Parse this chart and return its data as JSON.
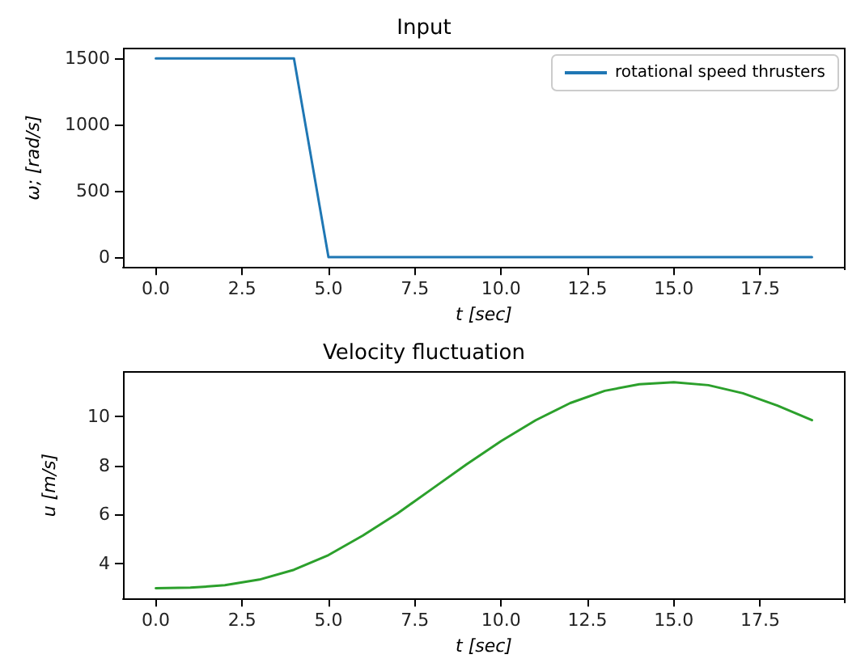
{
  "chart_data": [
    {
      "type": "line",
      "title": "Input",
      "xlabel": "t [sec]",
      "ylabel": "ω; [rad/s]",
      "x": [
        0,
        1,
        2,
        3,
        4,
        5,
        6,
        7,
        8,
        9,
        10,
        11,
        12,
        13,
        14,
        15,
        16,
        17,
        18,
        19
      ],
      "series": [
        {
          "name": "rotational speed thrusters",
          "color": "#1f77b4",
          "values": [
            1500,
            1500,
            1500,
            1500,
            1500,
            0,
            0,
            0,
            0,
            0,
            0,
            0,
            0,
            0,
            0,
            0,
            0,
            0,
            0,
            0
          ]
        }
      ],
      "xlim": [
        -0.95,
        19.95
      ],
      "xticks": [
        {
          "value": 0,
          "label": "0.0"
        },
        {
          "value": 2.5,
          "label": "2.5"
        },
        {
          "value": 5,
          "label": "5.0"
        },
        {
          "value": 7.5,
          "label": "7.5"
        },
        {
          "value": 10,
          "label": "10.0"
        },
        {
          "value": 12.5,
          "label": "12.5"
        },
        {
          "value": 15,
          "label": "15.0"
        },
        {
          "value": 17.5,
          "label": "17.5"
        }
      ],
      "ylim": [
        -75,
        1575
      ],
      "yticks": [
        0,
        500,
        1000,
        1500
      ],
      "legend": "top right",
      "grid": false,
      "marker": "none",
      "line_style": "solid"
    },
    {
      "type": "line",
      "title": "Velocity fluctuation",
      "xlabel": "t [sec]",
      "ylabel": "u [m/s]",
      "x": [
        0,
        1,
        2,
        3,
        4,
        5,
        6,
        7,
        8,
        9,
        10,
        11,
        12,
        13,
        14,
        15,
        16,
        17,
        18,
        19
      ],
      "series": [
        {
          "color": "#2ca02c",
          "values": [
            3.0,
            3.02,
            3.12,
            3.35,
            3.75,
            4.35,
            5.15,
            6.05,
            7.05,
            8.05,
            9.0,
            9.85,
            10.55,
            11.05,
            11.32,
            11.4,
            11.28,
            10.95,
            10.45,
            9.85
          ]
        }
      ],
      "xlim": [
        -0.95,
        19.95
      ],
      "xticks": [
        {
          "value": 0,
          "label": "0.0"
        },
        {
          "value": 2.5,
          "label": "2.5"
        },
        {
          "value": 5,
          "label": "5.0"
        },
        {
          "value": 7.5,
          "label": "7.5"
        },
        {
          "value": 10,
          "label": "10.0"
        },
        {
          "value": 12.5,
          "label": "12.5"
        },
        {
          "value": 15,
          "label": "15.0"
        },
        {
          "value": 17.5,
          "label": "17.5"
        }
      ],
      "ylim": [
        2.58,
        11.82
      ],
      "yticks": [
        4,
        6,
        8,
        10
      ],
      "legend": false,
      "grid": false,
      "marker": "none",
      "line_style": "solid"
    }
  ]
}
